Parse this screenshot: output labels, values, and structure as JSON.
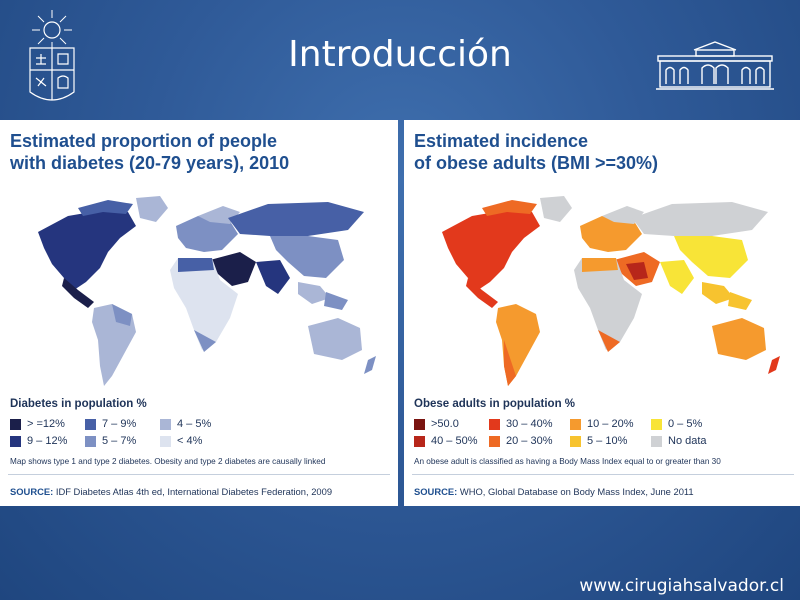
{
  "slide": {
    "title": "Introducción",
    "footer_url": "www.cirugiahsalvador.cl"
  },
  "colors": {
    "background": "#2f5a98",
    "title_blue": "#1f4f8f"
  },
  "left_panel": {
    "title_line1": "Estimated proportion of people",
    "title_line2": "with diabetes (20-79 years), 2010",
    "legend_title": "Diabetes in population %",
    "legend": [
      {
        "label": "> =12%",
        "color": "#1b1f4a"
      },
      {
        "label": "7 – 9%",
        "color": "#4760a6"
      },
      {
        "label": "4 – 5%",
        "color": "#aab6d6"
      },
      {
        "label": "9 – 12%",
        "color": "#25357e"
      },
      {
        "label": "5 – 7%",
        "color": "#7d90c3"
      },
      {
        "label": "< 4%",
        "color": "#dde3ef"
      }
    ],
    "note": "Map shows type 1 and type 2 diabetes. Obesity and type 2 diabetes are causally linked",
    "source_label": "SOURCE:",
    "source_text": " IDF Diabetes Atlas 4th ed, International Diabetes Federation, 2009"
  },
  "right_panel": {
    "title_line1": "Estimated incidence",
    "title_line2": "of obese adults (BMI >=30%)",
    "legend_title": "Obese adults in population %",
    "legend": [
      {
        "label": ">50.0",
        "color": "#7a1410"
      },
      {
        "label": "30 – 40%",
        "color": "#e2391c"
      },
      {
        "label": "10 – 20%",
        "color": "#f59a2e"
      },
      {
        "label": "0 – 5%",
        "color": "#f8e437"
      },
      {
        "label": "40 – 50%",
        "color": "#b7261a"
      },
      {
        "label": "20 – 30%",
        "color": "#ee6a24"
      },
      {
        "label": "5 – 10%",
        "color": "#f7c32f"
      },
      {
        "label": "No data",
        "color": "#cfd1d4"
      }
    ],
    "note": "An obese adult is classified as having a Body Mass Index equal to or greater than 30",
    "source_label": "SOURCE:",
    "source_text": " WHO, Global Database on Body Mass Index, June 2011"
  }
}
